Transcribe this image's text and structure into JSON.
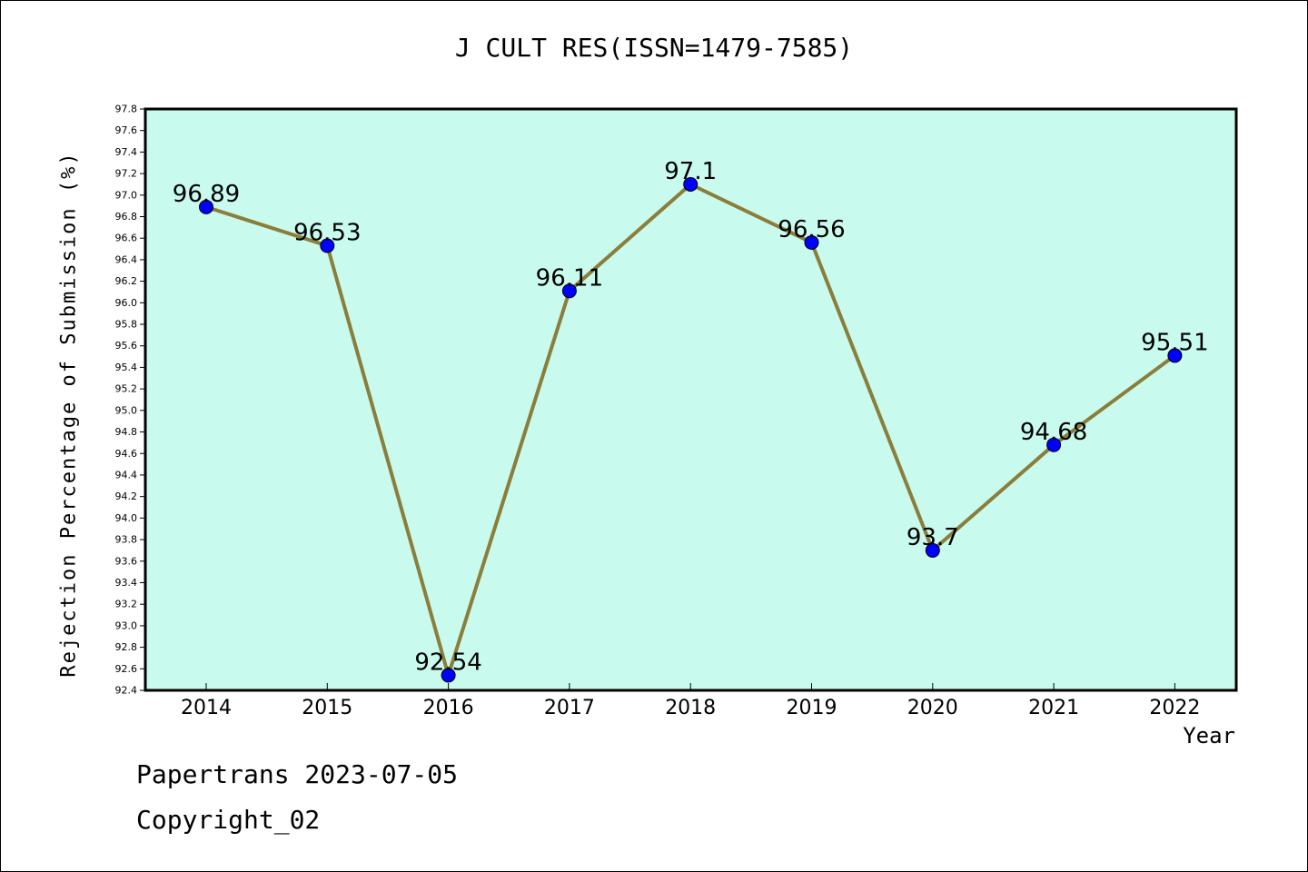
{
  "chart_data": {
    "type": "line",
    "title": "J CULT RES(ISSN=1479-7585)",
    "xlabel": "Year",
    "ylabel": "Rejection Percentage of Submission (%)",
    "categories": [
      "2014",
      "2015",
      "2016",
      "2017",
      "2018",
      "2019",
      "2020",
      "2021",
      "2022"
    ],
    "series": [
      {
        "values": [
          96.89,
          96.53,
          92.54,
          96.11,
          97.1,
          96.56,
          93.7,
          94.68,
          95.51
        ]
      }
    ],
    "data_labels": [
      "96.89",
      "96.53",
      "92.54",
      "96.11",
      "97.1",
      "96.56",
      "93.7",
      "94.68",
      "95.51"
    ],
    "ylim": [
      92.4,
      97.8
    ],
    "y_ticks": [
      "92.4",
      "92.6",
      "92.8",
      "93.0",
      "93.2",
      "93.4",
      "93.6",
      "93.8",
      "94.0",
      "94.2",
      "94.4",
      "94.6",
      "94.8",
      "95.0",
      "95.2",
      "95.4",
      "95.6",
      "95.8",
      "96.0",
      "96.2",
      "96.4",
      "96.6",
      "96.8",
      "97.0",
      "97.2",
      "97.4",
      "97.6",
      "97.8"
    ],
    "grid": false,
    "colors": {
      "plot_bg": "#c8fbee",
      "line": "#8b7d3a",
      "marker": "#0000ff"
    }
  },
  "footer": {
    "line1": "Papertrans 2023-07-05",
    "line2": "Copyright_02"
  }
}
